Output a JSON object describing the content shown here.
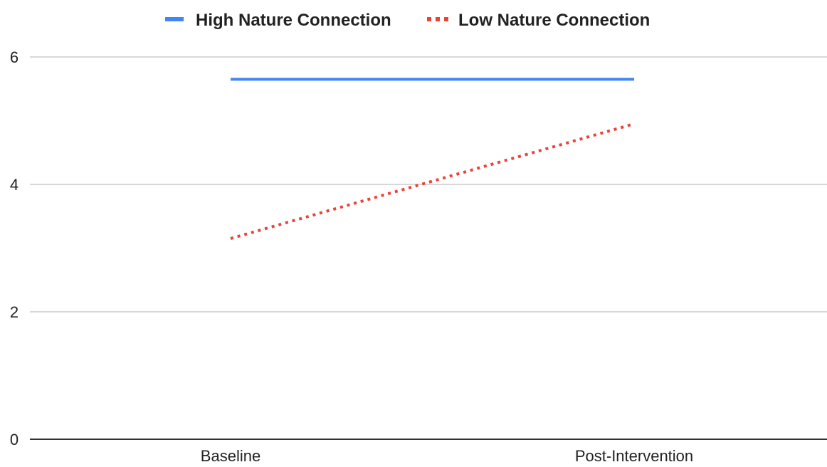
{
  "chart_data": {
    "type": "line",
    "categories": [
      "Baseline",
      "Post-Intervention"
    ],
    "series": [
      {
        "name": "High Nature Connection",
        "values": [
          5.65,
          5.65
        ],
        "color": "#4285f4",
        "line_style": "solid"
      },
      {
        "name": "Low Nature Connection",
        "values": [
          3.15,
          4.95
        ],
        "color": "#ea4335",
        "line_style": "dotted"
      }
    ],
    "ylim": [
      0,
      6
    ],
    "yticks": [
      "0",
      "2",
      "4",
      "6"
    ],
    "grid": true,
    "legend_position": "top-center",
    "title": "",
    "xlabel": "",
    "ylabel": ""
  }
}
